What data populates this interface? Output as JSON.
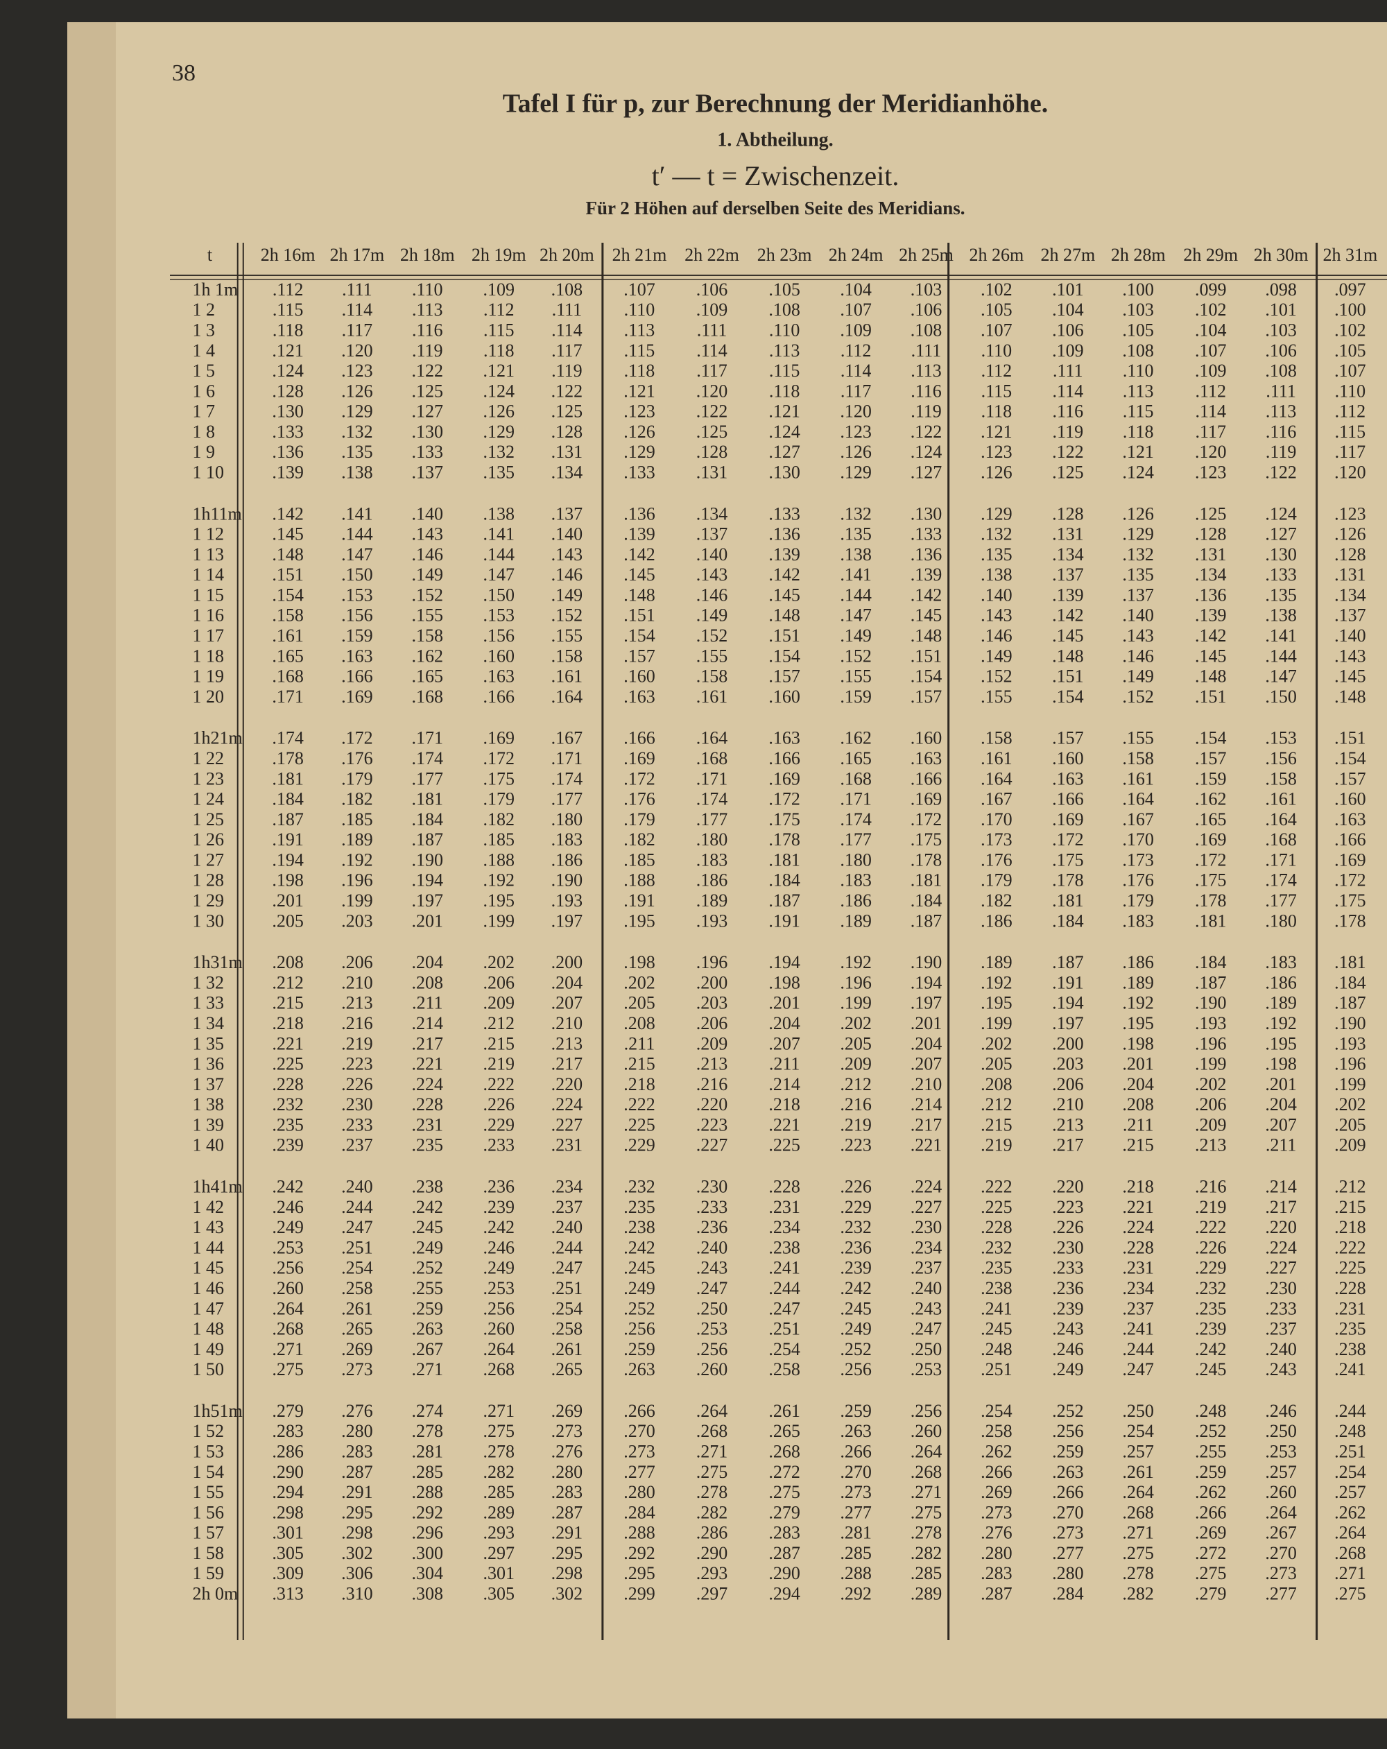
{
  "page_number": "38",
  "title": "Tafel I für p, zur Berechnung der Meridianhöhe.",
  "subtitle": "1. Abtheilung.",
  "formula": "t′ — t = Zwischenzeit.",
  "note": "Für 2 Höhen auf derselben Seite des Meridians.",
  "table": {
    "header": [
      "t",
      "2h 16m",
      "2h 17m",
      "2h 18m",
      "2h 19m",
      "2h 20m",
      "2h 21m",
      "2h 22m",
      "2h 23m",
      "2h 24m",
      "2h 25m",
      "2h 26m",
      "2h 27m",
      "2h 28m",
      "2h 29m",
      "2h 30m",
      "2h 31m"
    ],
    "rows": [
      [
        "1h 1m",
        ".112",
        ".111",
        ".110",
        ".109",
        ".108",
        ".107",
        ".106",
        ".105",
        ".104",
        ".103",
        ".102",
        ".101",
        ".100",
        ".099",
        ".098",
        ".097"
      ],
      [
        "1 2",
        ".115",
        ".114",
        ".113",
        ".112",
        ".111",
        ".110",
        ".109",
        ".108",
        ".107",
        ".106",
        ".105",
        ".104",
        ".103",
        ".102",
        ".101",
        ".100"
      ],
      [
        "1 3",
        ".118",
        ".117",
        ".116",
        ".115",
        ".114",
        ".113",
        ".111",
        ".110",
        ".109",
        ".108",
        ".107",
        ".106",
        ".105",
        ".104",
        ".103",
        ".102"
      ],
      [
        "1 4",
        ".121",
        ".120",
        ".119",
        ".118",
        ".117",
        ".115",
        ".114",
        ".113",
        ".112",
        ".111",
        ".110",
        ".109",
        ".108",
        ".107",
        ".106",
        ".105"
      ],
      [
        "1 5",
        ".124",
        ".123",
        ".122",
        ".121",
        ".119",
        ".118",
        ".117",
        ".115",
        ".114",
        ".113",
        ".112",
        ".111",
        ".110",
        ".109",
        ".108",
        ".107"
      ],
      [
        "1 6",
        ".128",
        ".126",
        ".125",
        ".124",
        ".122",
        ".121",
        ".120",
        ".118",
        ".117",
        ".116",
        ".115",
        ".114",
        ".113",
        ".112",
        ".111",
        ".110"
      ],
      [
        "1 7",
        ".130",
        ".129",
        ".127",
        ".126",
        ".125",
        ".123",
        ".122",
        ".121",
        ".120",
        ".119",
        ".118",
        ".116",
        ".115",
        ".114",
        ".113",
        ".112"
      ],
      [
        "1 8",
        ".133",
        ".132",
        ".130",
        ".129",
        ".128",
        ".126",
        ".125",
        ".124",
        ".123",
        ".122",
        ".121",
        ".119",
        ".118",
        ".117",
        ".116",
        ".115"
      ],
      [
        "1 9",
        ".136",
        ".135",
        ".133",
        ".132",
        ".131",
        ".129",
        ".128",
        ".127",
        ".126",
        ".124",
        ".123",
        ".122",
        ".121",
        ".120",
        ".119",
        ".117"
      ],
      [
        "1 10",
        ".139",
        ".138",
        ".137",
        ".135",
        ".134",
        ".133",
        ".131",
        ".130",
        ".129",
        ".127",
        ".126",
        ".125",
        ".124",
        ".123",
        ".122",
        ".120"
      ],
      [
        "1h11m",
        ".142",
        ".141",
        ".140",
        ".138",
        ".137",
        ".136",
        ".134",
        ".133",
        ".132",
        ".130",
        ".129",
        ".128",
        ".126",
        ".125",
        ".124",
        ".123"
      ],
      [
        "1 12",
        ".145",
        ".144",
        ".143",
        ".141",
        ".140",
        ".139",
        ".137",
        ".136",
        ".135",
        ".133",
        ".132",
        ".131",
        ".129",
        ".128",
        ".127",
        ".126"
      ],
      [
        "1 13",
        ".148",
        ".147",
        ".146",
        ".144",
        ".143",
        ".142",
        ".140",
        ".139",
        ".138",
        ".136",
        ".135",
        ".134",
        ".132",
        ".131",
        ".130",
        ".128"
      ],
      [
        "1 14",
        ".151",
        ".150",
        ".149",
        ".147",
        ".146",
        ".145",
        ".143",
        ".142",
        ".141",
        ".139",
        ".138",
        ".137",
        ".135",
        ".134",
        ".133",
        ".131"
      ],
      [
        "1 15",
        ".154",
        ".153",
        ".152",
        ".150",
        ".149",
        ".148",
        ".146",
        ".145",
        ".144",
        ".142",
        ".140",
        ".139",
        ".137",
        ".136",
        ".135",
        ".134"
      ],
      [
        "1 16",
        ".158",
        ".156",
        ".155",
        ".153",
        ".152",
        ".151",
        ".149",
        ".148",
        ".147",
        ".145",
        ".143",
        ".142",
        ".140",
        ".139",
        ".138",
        ".137"
      ],
      [
        "1 17",
        ".161",
        ".159",
        ".158",
        ".156",
        ".155",
        ".154",
        ".152",
        ".151",
        ".149",
        ".148",
        ".146",
        ".145",
        ".143",
        ".142",
        ".141",
        ".140"
      ],
      [
        "1 18",
        ".165",
        ".163",
        ".162",
        ".160",
        ".158",
        ".157",
        ".155",
        ".154",
        ".152",
        ".151",
        ".149",
        ".148",
        ".146",
        ".145",
        ".144",
        ".143"
      ],
      [
        "1 19",
        ".168",
        ".166",
        ".165",
        ".163",
        ".161",
        ".160",
        ".158",
        ".157",
        ".155",
        ".154",
        ".152",
        ".151",
        ".149",
        ".148",
        ".147",
        ".145"
      ],
      [
        "1 20",
        ".171",
        ".169",
        ".168",
        ".166",
        ".164",
        ".163",
        ".161",
        ".160",
        ".159",
        ".157",
        ".155",
        ".154",
        ".152",
        ".151",
        ".150",
        ".148"
      ],
      [
        "1h21m",
        ".174",
        ".172",
        ".171",
        ".169",
        ".167",
        ".166",
        ".164",
        ".163",
        ".162",
        ".160",
        ".158",
        ".157",
        ".155",
        ".154",
        ".153",
        ".151"
      ],
      [
        "1 22",
        ".178",
        ".176",
        ".174",
        ".172",
        ".171",
        ".169",
        ".168",
        ".166",
        ".165",
        ".163",
        ".161",
        ".160",
        ".158",
        ".157",
        ".156",
        ".154"
      ],
      [
        "1 23",
        ".181",
        ".179",
        ".177",
        ".175",
        ".174",
        ".172",
        ".171",
        ".169",
        ".168",
        ".166",
        ".164",
        ".163",
        ".161",
        ".159",
        ".158",
        ".157"
      ],
      [
        "1 24",
        ".184",
        ".182",
        ".181",
        ".179",
        ".177",
        ".176",
        ".174",
        ".172",
        ".171",
        ".169",
        ".167",
        ".166",
        ".164",
        ".162",
        ".161",
        ".160"
      ],
      [
        "1 25",
        ".187",
        ".185",
        ".184",
        ".182",
        ".180",
        ".179",
        ".177",
        ".175",
        ".174",
        ".172",
        ".170",
        ".169",
        ".167",
        ".165",
        ".164",
        ".163"
      ],
      [
        "1 26",
        ".191",
        ".189",
        ".187",
        ".185",
        ".183",
        ".182",
        ".180",
        ".178",
        ".177",
        ".175",
        ".173",
        ".172",
        ".170",
        ".169",
        ".168",
        ".166"
      ],
      [
        "1 27",
        ".194",
        ".192",
        ".190",
        ".188",
        ".186",
        ".185",
        ".183",
        ".181",
        ".180",
        ".178",
        ".176",
        ".175",
        ".173",
        ".172",
        ".171",
        ".169"
      ],
      [
        "1 28",
        ".198",
        ".196",
        ".194",
        ".192",
        ".190",
        ".188",
        ".186",
        ".184",
        ".183",
        ".181",
        ".179",
        ".178",
        ".176",
        ".175",
        ".174",
        ".172"
      ],
      [
        "1 29",
        ".201",
        ".199",
        ".197",
        ".195",
        ".193",
        ".191",
        ".189",
        ".187",
        ".186",
        ".184",
        ".182",
        ".181",
        ".179",
        ".178",
        ".177",
        ".175"
      ],
      [
        "1 30",
        ".205",
        ".203",
        ".201",
        ".199",
        ".197",
        ".195",
        ".193",
        ".191",
        ".189",
        ".187",
        ".186",
        ".184",
        ".183",
        ".181",
        ".180",
        ".178"
      ],
      [
        "1h31m",
        ".208",
        ".206",
        ".204",
        ".202",
        ".200",
        ".198",
        ".196",
        ".194",
        ".192",
        ".190",
        ".189",
        ".187",
        ".186",
        ".184",
        ".183",
        ".181"
      ],
      [
        "1 32",
        ".212",
        ".210",
        ".208",
        ".206",
        ".204",
        ".202",
        ".200",
        ".198",
        ".196",
        ".194",
        ".192",
        ".191",
        ".189",
        ".187",
        ".186",
        ".184"
      ],
      [
        "1 33",
        ".215",
        ".213",
        ".211",
        ".209",
        ".207",
        ".205",
        ".203",
        ".201",
        ".199",
        ".197",
        ".195",
        ".194",
        ".192",
        ".190",
        ".189",
        ".187"
      ],
      [
        "1 34",
        ".218",
        ".216",
        ".214",
        ".212",
        ".210",
        ".208",
        ".206",
        ".204",
        ".202",
        ".201",
        ".199",
        ".197",
        ".195",
        ".193",
        ".192",
        ".190"
      ],
      [
        "1 35",
        ".221",
        ".219",
        ".217",
        ".215",
        ".213",
        ".211",
        ".209",
        ".207",
        ".205",
        ".204",
        ".202",
        ".200",
        ".198",
        ".196",
        ".195",
        ".193"
      ],
      [
        "1 36",
        ".225",
        ".223",
        ".221",
        ".219",
        ".217",
        ".215",
        ".213",
        ".211",
        ".209",
        ".207",
        ".205",
        ".203",
        ".201",
        ".199",
        ".198",
        ".196"
      ],
      [
        "1 37",
        ".228",
        ".226",
        ".224",
        ".222",
        ".220",
        ".218",
        ".216",
        ".214",
        ".212",
        ".210",
        ".208",
        ".206",
        ".204",
        ".202",
        ".201",
        ".199"
      ],
      [
        "1 38",
        ".232",
        ".230",
        ".228",
        ".226",
        ".224",
        ".222",
        ".220",
        ".218",
        ".216",
        ".214",
        ".212",
        ".210",
        ".208",
        ".206",
        ".204",
        ".202"
      ],
      [
        "1 39",
        ".235",
        ".233",
        ".231",
        ".229",
        ".227",
        ".225",
        ".223",
        ".221",
        ".219",
        ".217",
        ".215",
        ".213",
        ".211",
        ".209",
        ".207",
        ".205"
      ],
      [
        "1 40",
        ".239",
        ".237",
        ".235",
        ".233",
        ".231",
        ".229",
        ".227",
        ".225",
        ".223",
        ".221",
        ".219",
        ".217",
        ".215",
        ".213",
        ".211",
        ".209"
      ],
      [
        "1h41m",
        ".242",
        ".240",
        ".238",
        ".236",
        ".234",
        ".232",
        ".230",
        ".228",
        ".226",
        ".224",
        ".222",
        ".220",
        ".218",
        ".216",
        ".214",
        ".212"
      ],
      [
        "1 42",
        ".246",
        ".244",
        ".242",
        ".239",
        ".237",
        ".235",
        ".233",
        ".231",
        ".229",
        ".227",
        ".225",
        ".223",
        ".221",
        ".219",
        ".217",
        ".215"
      ],
      [
        "1 43",
        ".249",
        ".247",
        ".245",
        ".242",
        ".240",
        ".238",
        ".236",
        ".234",
        ".232",
        ".230",
        ".228",
        ".226",
        ".224",
        ".222",
        ".220",
        ".218"
      ],
      [
        "1 44",
        ".253",
        ".251",
        ".249",
        ".246",
        ".244",
        ".242",
        ".240",
        ".238",
        ".236",
        ".234",
        ".232",
        ".230",
        ".228",
        ".226",
        ".224",
        ".222"
      ],
      [
        "1 45",
        ".256",
        ".254",
        ".252",
        ".249",
        ".247",
        ".245",
        ".243",
        ".241",
        ".239",
        ".237",
        ".235",
        ".233",
        ".231",
        ".229",
        ".227",
        ".225"
      ],
      [
        "1 46",
        ".260",
        ".258",
        ".255",
        ".253",
        ".251",
        ".249",
        ".247",
        ".244",
        ".242",
        ".240",
        ".238",
        ".236",
        ".234",
        ".232",
        ".230",
        ".228"
      ],
      [
        "1 47",
        ".264",
        ".261",
        ".259",
        ".256",
        ".254",
        ".252",
        ".250",
        ".247",
        ".245",
        ".243",
        ".241",
        ".239",
        ".237",
        ".235",
        ".233",
        ".231"
      ],
      [
        "1 48",
        ".268",
        ".265",
        ".263",
        ".260",
        ".258",
        ".256",
        ".253",
        ".251",
        ".249",
        ".247",
        ".245",
        ".243",
        ".241",
        ".239",
        ".237",
        ".235"
      ],
      [
        "1 49",
        ".271",
        ".269",
        ".267",
        ".264",
        ".261",
        ".259",
        ".256",
        ".254",
        ".252",
        ".250",
        ".248",
        ".246",
        ".244",
        ".242",
        ".240",
        ".238"
      ],
      [
        "1 50",
        ".275",
        ".273",
        ".271",
        ".268",
        ".265",
        ".263",
        ".260",
        ".258",
        ".256",
        ".253",
        ".251",
        ".249",
        ".247",
        ".245",
        ".243",
        ".241"
      ],
      [
        "1h51m",
        ".279",
        ".276",
        ".274",
        ".271",
        ".269",
        ".266",
        ".264",
        ".261",
        ".259",
        ".256",
        ".254",
        ".252",
        ".250",
        ".248",
        ".246",
        ".244"
      ],
      [
        "1 52",
        ".283",
        ".280",
        ".278",
        ".275",
        ".273",
        ".270",
        ".268",
        ".265",
        ".263",
        ".260",
        ".258",
        ".256",
        ".254",
        ".252",
        ".250",
        ".248"
      ],
      [
        "1 53",
        ".286",
        ".283",
        ".281",
        ".278",
        ".276",
        ".273",
        ".271",
        ".268",
        ".266",
        ".264",
        ".262",
        ".259",
        ".257",
        ".255",
        ".253",
        ".251"
      ],
      [
        "1 54",
        ".290",
        ".287",
        ".285",
        ".282",
        ".280",
        ".277",
        ".275",
        ".272",
        ".270",
        ".268",
        ".266",
        ".263",
        ".261",
        ".259",
        ".257",
        ".254"
      ],
      [
        "1 55",
        ".294",
        ".291",
        ".288",
        ".285",
        ".283",
        ".280",
        ".278",
        ".275",
        ".273",
        ".271",
        ".269",
        ".266",
        ".264",
        ".262",
        ".260",
        ".257"
      ],
      [
        "1 56",
        ".298",
        ".295",
        ".292",
        ".289",
        ".287",
        ".284",
        ".282",
        ".279",
        ".277",
        ".275",
        ".273",
        ".270",
        ".268",
        ".266",
        ".264",
        ".262"
      ],
      [
        "1 57",
        ".301",
        ".298",
        ".296",
        ".293",
        ".291",
        ".288",
        ".286",
        ".283",
        ".281",
        ".278",
        ".276",
        ".273",
        ".271",
        ".269",
        ".267",
        ".264"
      ],
      [
        "1 58",
        ".305",
        ".302",
        ".300",
        ".297",
        ".295",
        ".292",
        ".290",
        ".287",
        ".285",
        ".282",
        ".280",
        ".277",
        ".275",
        ".272",
        ".270",
        ".268"
      ],
      [
        "1 59",
        ".309",
        ".306",
        ".304",
        ".301",
        ".298",
        ".295",
        ".293",
        ".290",
        ".288",
        ".285",
        ".283",
        ".280",
        ".278",
        ".275",
        ".273",
        ".271"
      ],
      [
        "2h 0m",
        ".313",
        ".310",
        ".308",
        ".305",
        ".302",
        ".299",
        ".297",
        ".294",
        ".292",
        ".289",
        ".287",
        ".284",
        ".282",
        ".279",
        ".277",
        ".275"
      ]
    ]
  }
}
